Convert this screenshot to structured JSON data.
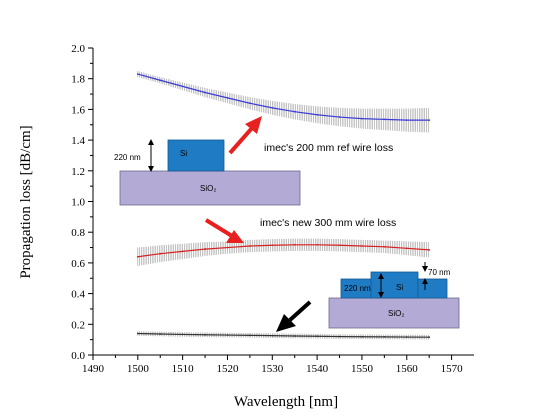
{
  "chart_data": {
    "type": "line",
    "xlabel": "Wavelength [nm]",
    "ylabel": "Propagation loss [dB/cm]",
    "xlim": [
      1490,
      1575
    ],
    "ylim": [
      0.0,
      2.0
    ],
    "x_ticks": [
      "1490",
      "1500",
      "1510",
      "1520",
      "1530",
      "1540",
      "1550",
      "1560",
      "1570"
    ],
    "y_ticks": [
      "0.0",
      "0.2",
      "0.4",
      "0.6",
      "0.8",
      "1.0",
      "1.2",
      "1.4",
      "1.6",
      "1.8",
      "2.0"
    ],
    "grid": false,
    "legend": "none",
    "series": [
      {
        "color": "#3b3bd6",
        "x": [
          1500,
          1505,
          1510,
          1515,
          1520,
          1525,
          1530,
          1535,
          1540,
          1545,
          1550,
          1555,
          1560,
          1565
        ],
        "y": [
          1.83,
          1.79,
          1.75,
          1.71,
          1.675,
          1.64,
          1.61,
          1.585,
          1.565,
          1.55,
          1.54,
          1.535,
          1.53,
          1.53
        ],
        "error": [
          0.02,
          0.02,
          0.025,
          0.03,
          0.035,
          0.04,
          0.045,
          0.05,
          0.055,
          0.06,
          0.065,
          0.07,
          0.075,
          0.08
        ]
      },
      {
        "color": "#d62020",
        "x": [
          1500,
          1505,
          1510,
          1515,
          1520,
          1525,
          1530,
          1535,
          1540,
          1545,
          1550,
          1555,
          1560,
          1565
        ],
        "y": [
          0.64,
          0.66,
          0.675,
          0.69,
          0.7,
          0.71,
          0.715,
          0.718,
          0.718,
          0.715,
          0.71,
          0.705,
          0.695,
          0.685
        ],
        "error": [
          0.06,
          0.055,
          0.05,
          0.045,
          0.04,
          0.04,
          0.04,
          0.04,
          0.04,
          0.04,
          0.04,
          0.04,
          0.045,
          0.05
        ]
      },
      {
        "color": "#333333",
        "x": [
          1500,
          1505,
          1510,
          1515,
          1520,
          1525,
          1530,
          1535,
          1540,
          1545,
          1550,
          1555,
          1560,
          1565
        ],
        "y": [
          0.14,
          0.137,
          0.134,
          0.132,
          0.13,
          0.128,
          0.126,
          0.124,
          0.122,
          0.12,
          0.119,
          0.118,
          0.117,
          0.116
        ],
        "error": [
          0.015,
          0.015,
          0.015,
          0.015,
          0.015,
          0.015,
          0.015,
          0.015,
          0.015,
          0.015,
          0.015,
          0.015,
          0.015,
          0.015
        ]
      }
    ],
    "annotations": {
      "ref_loss": "imec's 200 mm ref wire loss",
      "new_loss": "imec's new 300 mm wire loss"
    },
    "insets": {
      "inset1": {
        "height_label": "220 nm",
        "core_label": "Si",
        "substrate_label": "SiO₂"
      },
      "inset2": {
        "height_label": "220 nm",
        "step_label": "70 nm",
        "core_label": "Si",
        "substrate_label": "SiO₂"
      }
    },
    "colors": {
      "core": "#1f7bc4",
      "substrate": "#b3aad6",
      "arrow_red": "#e82020",
      "arrow_black": "#000000",
      "errorbar": "#999999"
    }
  }
}
